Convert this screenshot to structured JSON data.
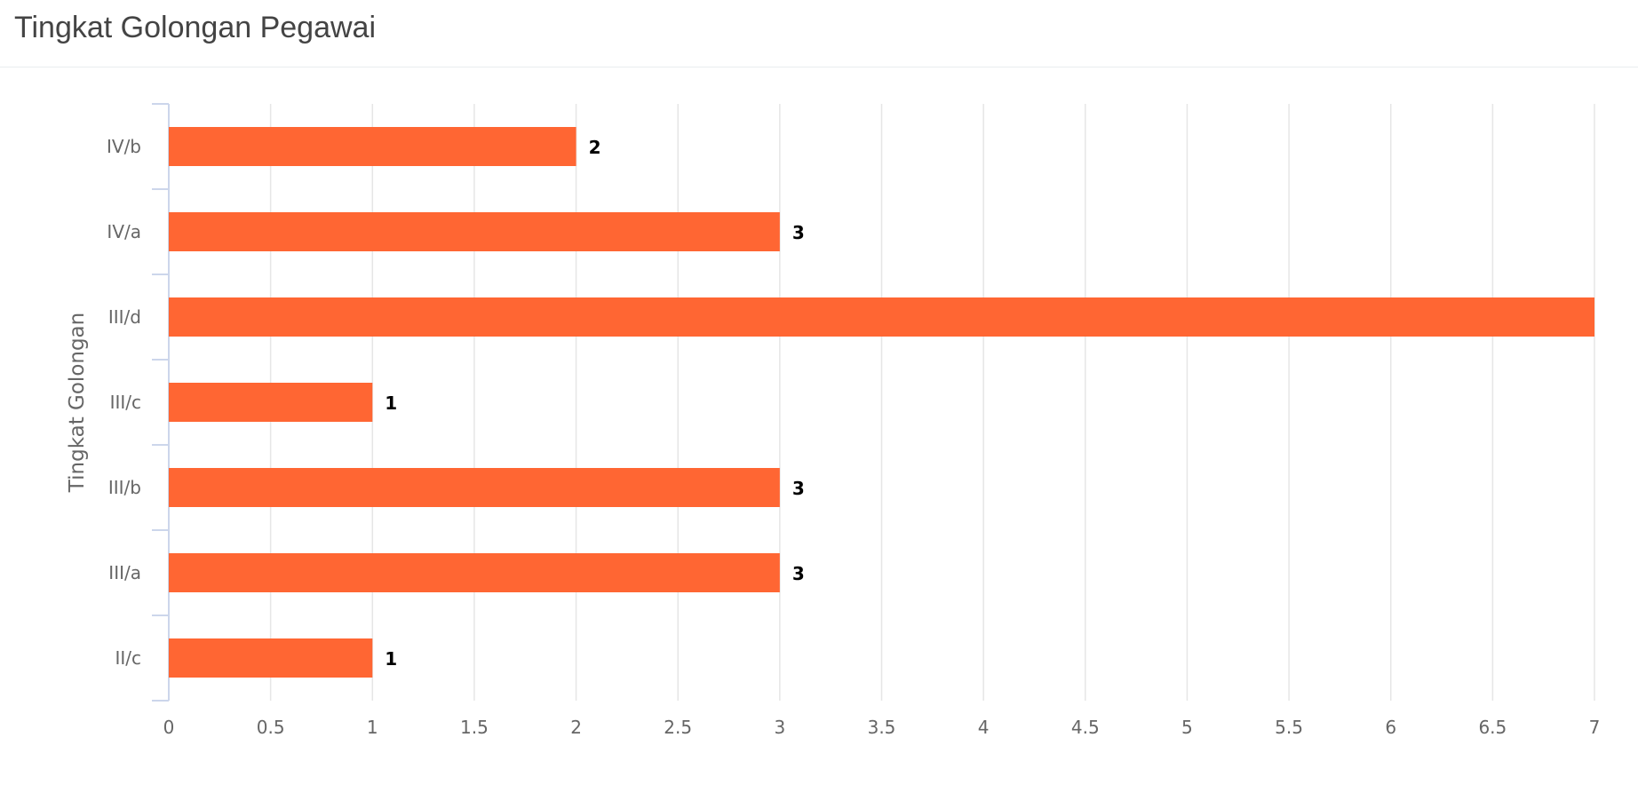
{
  "panel": {
    "title": "Tingkat Golongan Pegawai"
  },
  "colors": {
    "bar": "#ff6633",
    "grid": "#e6e6e6",
    "axis": "#ccd6eb"
  },
  "chart_data": {
    "type": "bar",
    "orientation": "horizontal",
    "title": "",
    "xlabel": "",
    "ylabel": "Tingkat Golongan",
    "categories": [
      "IV/b",
      "IV/a",
      "III/d",
      "III/c",
      "III/b",
      "III/a",
      "II/c"
    ],
    "values": [
      2,
      3,
      7,
      1,
      3,
      3,
      1
    ],
    "data_labels": [
      "2",
      "3",
      "",
      "1",
      "3",
      "3",
      "1"
    ],
    "xlim": [
      0,
      7
    ],
    "x_ticks": [
      "0",
      "0.5",
      "1",
      "1.5",
      "2",
      "2.5",
      "3",
      "3.5",
      "4",
      "4.5",
      "5",
      "5.5",
      "6",
      "6.5",
      "7"
    ],
    "grid": true,
    "legend": "none"
  }
}
